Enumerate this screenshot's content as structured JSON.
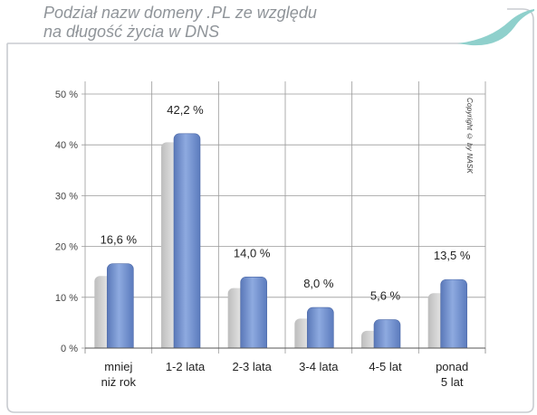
{
  "title_line1": "Podział nazw domeny .PL ze względu",
  "title_line2": "na długość życia w DNS",
  "copyright": "Copyright © by NASK",
  "colors": {
    "frame": "#c8cbd0",
    "accent_swoosh": "#8fd0cc",
    "bar_front": "#6f8fc9",
    "bar_back": "#c9c9c9",
    "grid": "#9a9a9a"
  },
  "chart_data": {
    "type": "bar",
    "categories": [
      [
        "mniej",
        "niż rok"
      ],
      [
        "1-2 lata"
      ],
      [
        "2-3 lata"
      ],
      [
        "3-4 lata"
      ],
      [
        "4-5 lat"
      ],
      [
        "ponad",
        "5 lat"
      ]
    ],
    "values": [
      16.6,
      42.2,
      14.0,
      8.0,
      5.6,
      13.5
    ],
    "back_values": [
      14.2,
      40.5,
      11.8,
      5.8,
      3.4,
      10.8
    ],
    "value_labels": [
      "16,6 %",
      "42,2 %",
      "14,0 %",
      "8,0 %",
      "5,6 %",
      "13,5 %"
    ],
    "y_ticks": [
      "0 %",
      "10 %",
      "20 %",
      "30 %",
      "40 %",
      "50 %"
    ],
    "ylim": [
      0,
      50
    ],
    "grid": true
  }
}
